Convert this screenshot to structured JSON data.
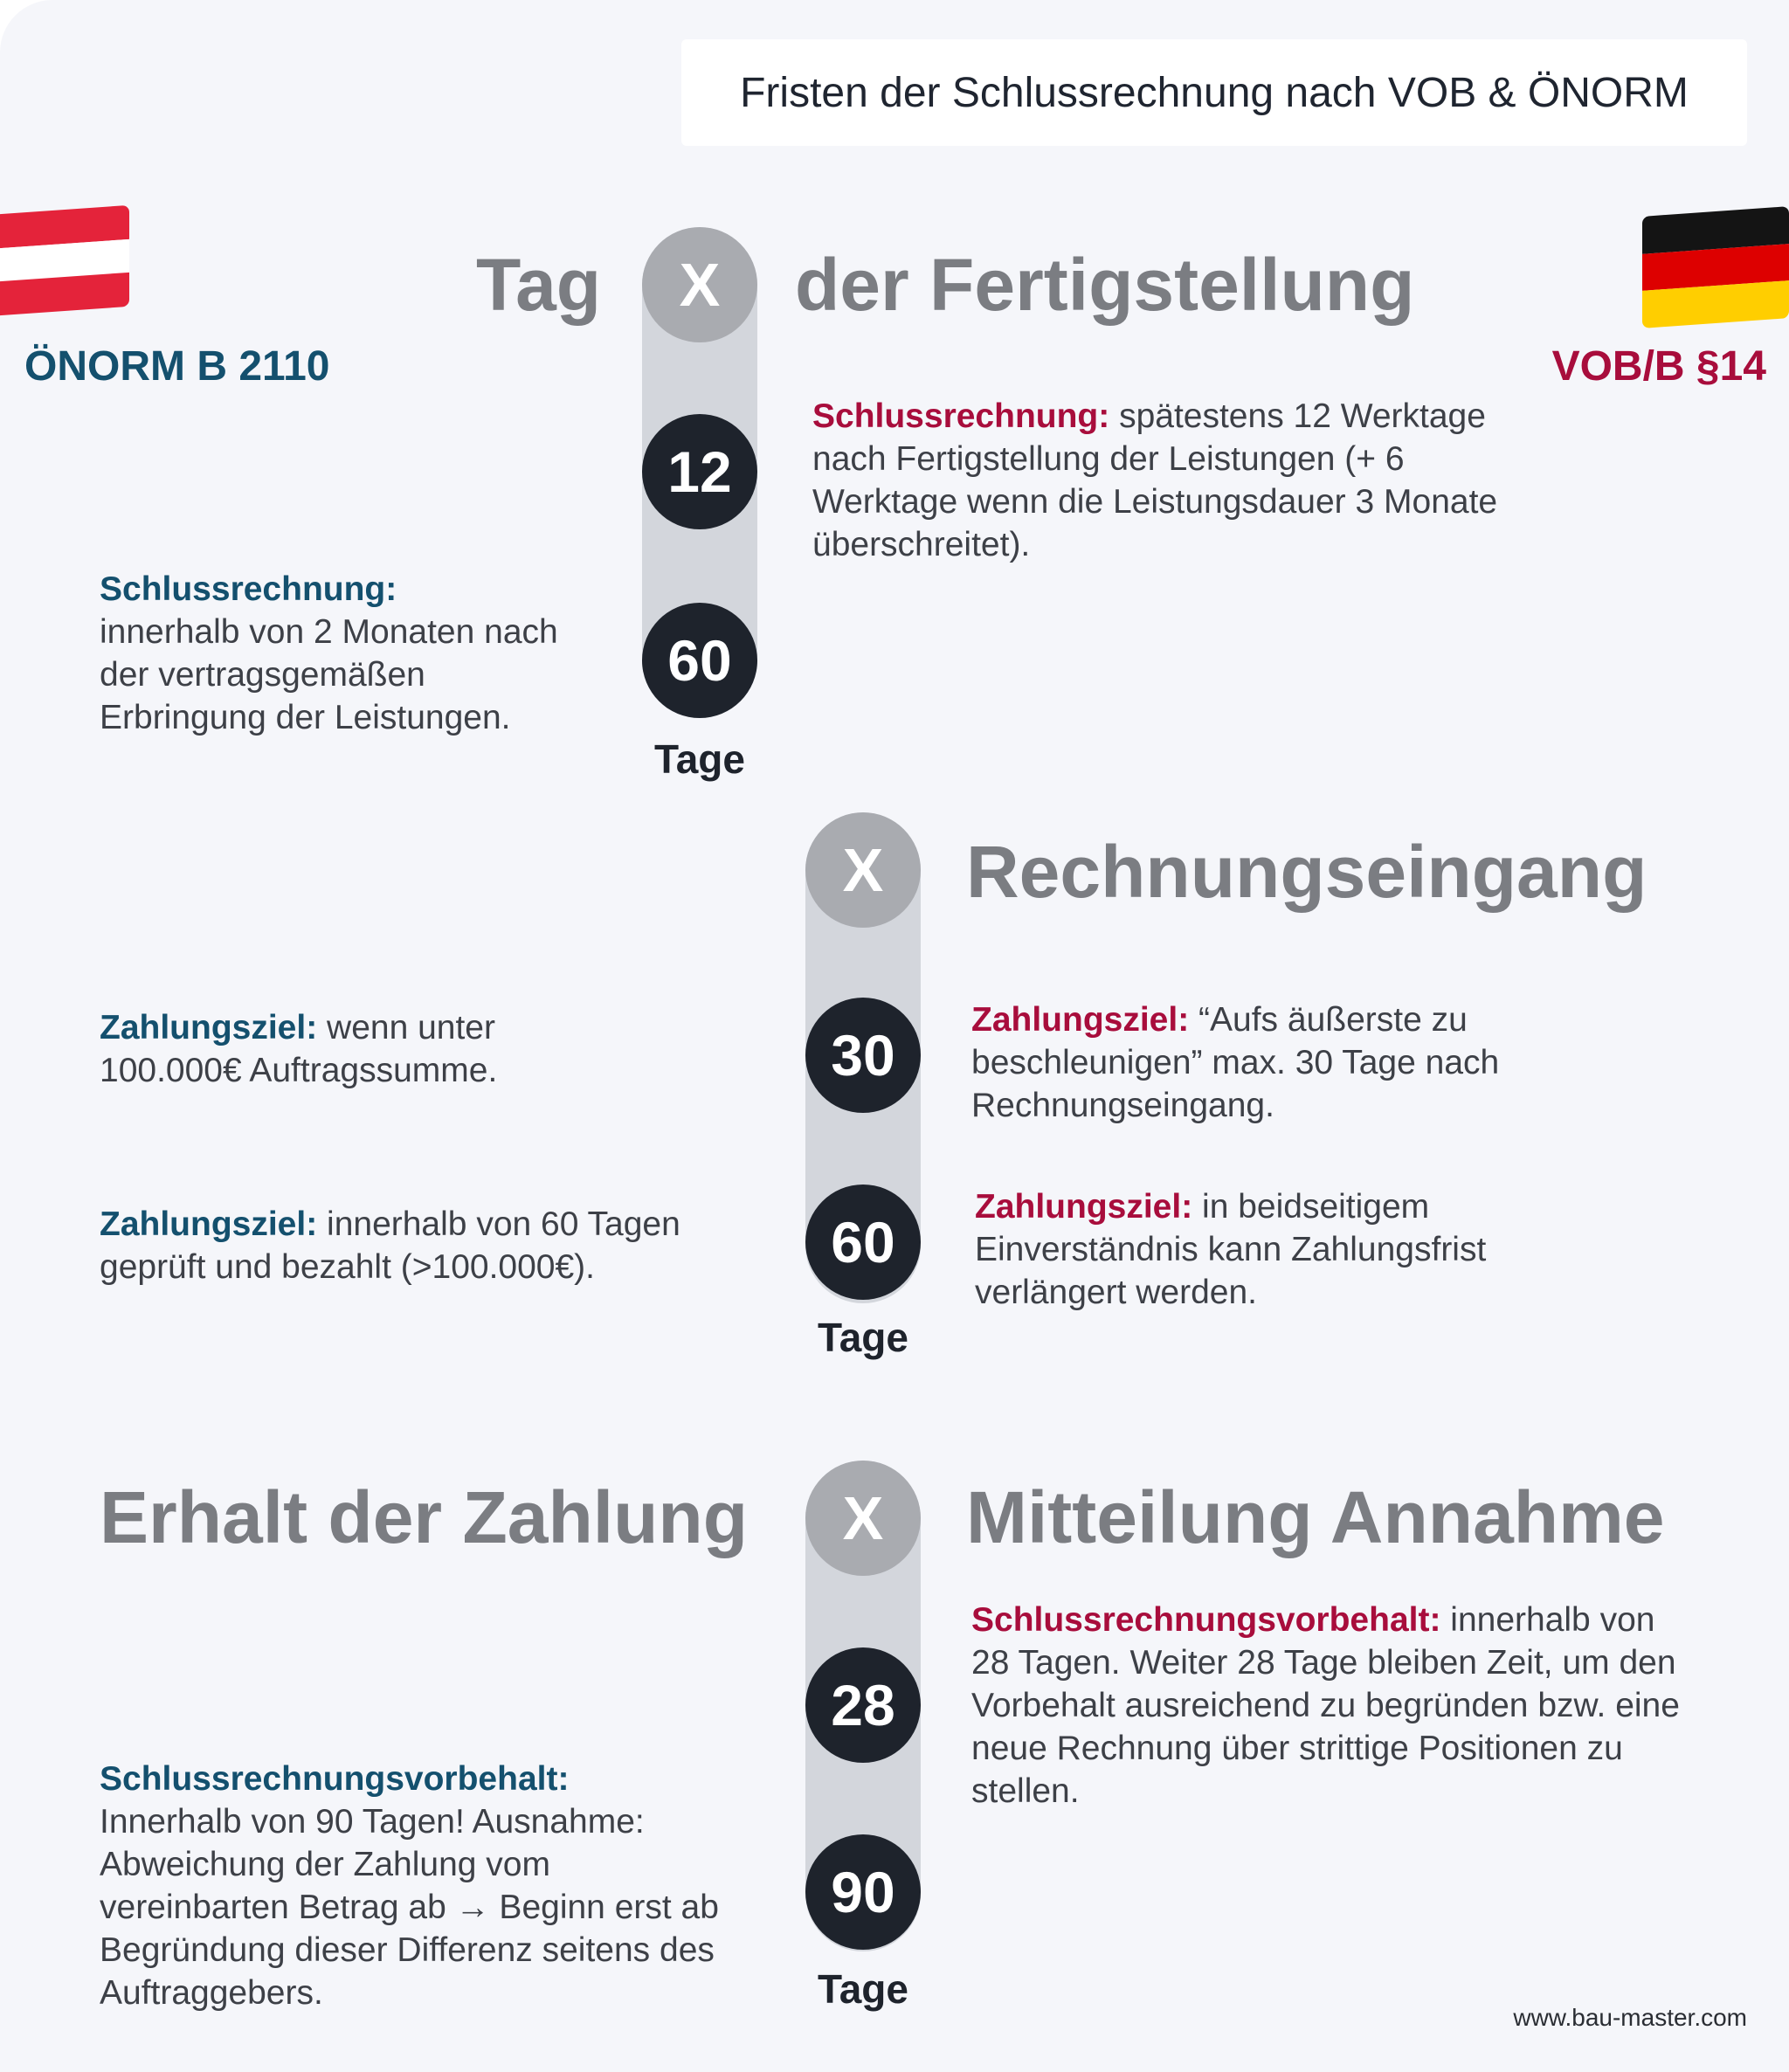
{
  "title": "Fristen der Schlussrechnung nach VOB & ÖNORM",
  "flags": {
    "austria": {
      "icon": "austria-flag-icon",
      "colors": [
        "#e4233a",
        "#ffffff",
        "#e4233a"
      ]
    },
    "germany": {
      "icon": "germany-flag-icon",
      "colors": [
        "#141414",
        "#dd0000",
        "#ffce00"
      ]
    }
  },
  "standards": {
    "austria": "ÖNORM B 2110",
    "germany": "VOB/B §14"
  },
  "colors": {
    "austria_label": "#14506e",
    "germany_label": "#a80d3c",
    "heading": "#7b7d82",
    "track": "#d3d6dc",
    "circle_x": "#a9abb0",
    "circle_number": "#1e232c"
  },
  "sections": [
    {
      "heading_left": "Tag",
      "marker": "X",
      "heading_right": "der Fertigstellung",
      "days": [
        "12",
        "60"
      ],
      "unit": "Tage",
      "germany_notes": [
        {
          "label": "Schlussrechnung:",
          "text": " spätestens 12 Werktage nach Fertigstellung der Leistungen (+ 6 Werktage wenn die Leistungsdauer 3 Monate überschreitet)."
        }
      ],
      "austria_notes": [
        {
          "label": "Schlussrechnung:",
          "text": "innerhalb von 2 Monaten nach der vertragsgemäßen Erbringung der Leistungen."
        }
      ]
    },
    {
      "marker": "X",
      "heading_right": "Rechnungseingang",
      "days": [
        "30",
        "60"
      ],
      "unit": "Tage",
      "austria_notes": [
        {
          "label": "Zahlungsziel:",
          "text": " wenn unter 100.000€ Auftragssumme."
        },
        {
          "label": "Zahlungsziel:",
          "text": " innerhalb von 60 Tagen geprüft und bezahlt (>100.000€)."
        }
      ],
      "germany_notes": [
        {
          "label": "Zahlungsziel:",
          "text": " “Aufs äußerste zu beschleunigen” max. 30 Tage nach Rechnungseingang."
        },
        {
          "label": "Zahlungsziel:",
          "text": "  in beidseitigem Einverständnis kann Zahlungsfrist verlängert werden."
        }
      ]
    },
    {
      "heading_left": "Erhalt der Zahlung",
      "marker": "X",
      "heading_right": "Mitteilung Annahme",
      "days": [
        "28",
        "90"
      ],
      "unit": "Tage",
      "germany_notes": [
        {
          "label": "Schlussrechnungsvorbehalt:",
          "text": "  innerhalb von 28 Tagen. Weiter 28 Tage bleiben Zeit, um den Vorbehalt ausreichend zu begründen bzw. eine neue Rechnung über strittige Positionen zu stellen."
        }
      ],
      "austria_notes": [
        {
          "label": "Schlussrechnungsvorbehalt:",
          "text": "Innerhalb von 90 Tagen! Ausnahme: Abweichung der Zahlung vom vereinbarten Betrag ab → Beginn erst ab Begründung dieser Differenz seitens des Auftraggebers."
        }
      ]
    }
  ],
  "footer": {
    "url": "www.bau-master.com"
  }
}
